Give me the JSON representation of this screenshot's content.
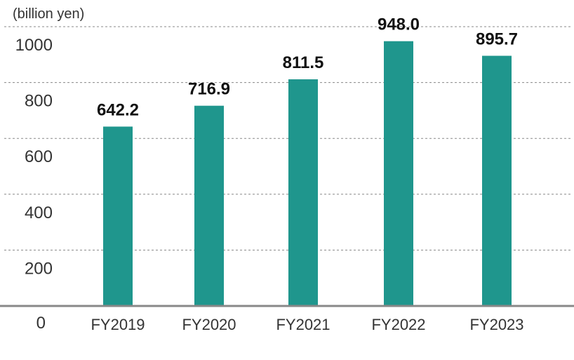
{
  "chart_data": {
    "type": "bar",
    "unit_label": "(billion yen)",
    "categories": [
      "FY2019",
      "FY2020",
      "FY2021",
      "FY2022",
      "FY2023"
    ],
    "values": [
      642.2,
      716.9,
      811.5,
      948.0,
      895.7
    ],
    "value_labels": [
      "642.2",
      "716.9",
      "811.5",
      "948.0",
      "895.7"
    ],
    "y_ticks": [
      "0",
      "200",
      "400",
      "600",
      "800",
      "1000"
    ],
    "y_tick_values": [
      0,
      200,
      400,
      600,
      800,
      1000
    ],
    "ylim": [
      0,
      1000
    ],
    "grid": true,
    "grid_style": "dotted",
    "colors": {
      "bar": "#1f968d",
      "axis": "#888888",
      "grid": "#888888"
    }
  }
}
